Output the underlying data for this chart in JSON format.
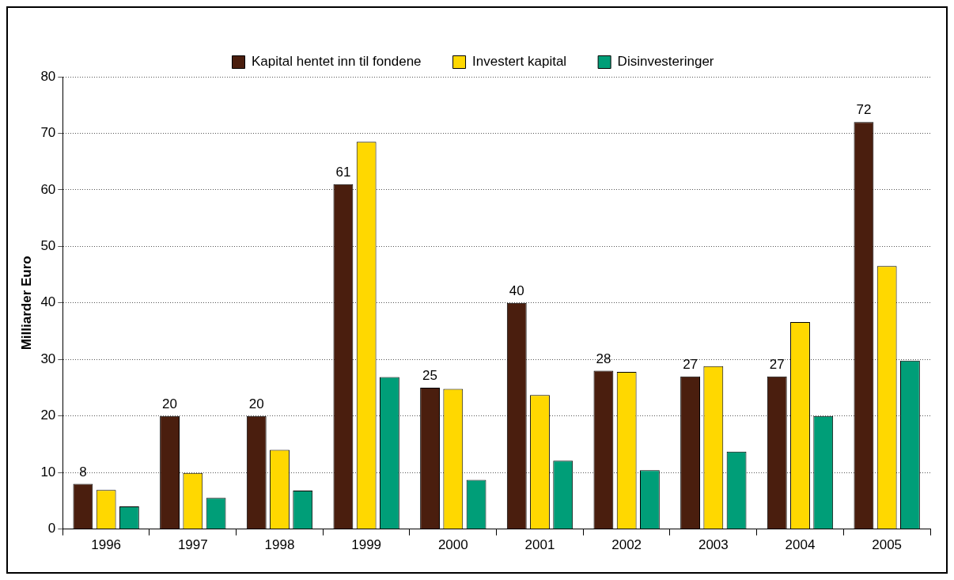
{
  "chart_data": {
    "type": "bar",
    "ylabel": "Milliarder Euro",
    "categories": [
      "1996",
      "1997",
      "1998",
      "1999",
      "2000",
      "2001",
      "2002",
      "2003",
      "2004",
      "2005"
    ],
    "series": [
      {
        "name": "Kapital hentet inn til fondene",
        "color": "#4a1e0e",
        "values": [
          8,
          20,
          20,
          61,
          25,
          40,
          28,
          27,
          27,
          72
        ],
        "value_labels": [
          "8",
          "20",
          "20",
          "61",
          "25",
          "40",
          "28",
          "27",
          "27",
          "72"
        ]
      },
      {
        "name": "Investert kapital",
        "color": "#ffd800",
        "values": [
          6.9,
          9.9,
          14,
          68.5,
          24.8,
          23.7,
          27.8,
          28.8,
          36.6,
          46.5
        ]
      },
      {
        "name": "Disinvesteringer",
        "color": "#009e78",
        "values": [
          4,
          5.5,
          6.8,
          26.9,
          8.7,
          12.1,
          10.4,
          13.7,
          20,
          29.8
        ]
      }
    ],
    "ylim": [
      0,
      80
    ],
    "yticks": [
      0,
      10,
      20,
      30,
      40,
      50,
      60,
      70,
      80
    ],
    "grid": "y",
    "legend": "top"
  }
}
